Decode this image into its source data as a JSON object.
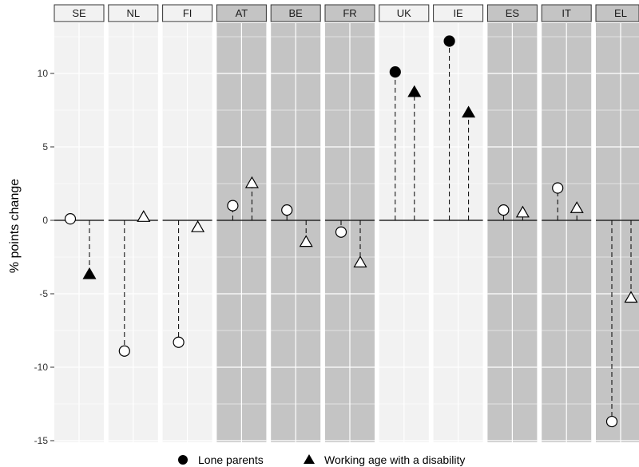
{
  "chart_data": {
    "type": "scatter",
    "ylabel": "% points change",
    "ylim": [
      -15,
      13.5
    ],
    "yticks": [
      -15,
      -10,
      -5,
      0,
      5,
      10
    ],
    "ytick_labels": [
      "-15",
      "-10",
      "-5",
      "0",
      "5",
      "10"
    ],
    "grid": true,
    "legend_position": "bottom",
    "legend": [
      {
        "label": "Lone parents",
        "marker": "circle"
      },
      {
        "label": "Working age with a disability",
        "marker": "triangle"
      }
    ],
    "facets": [
      {
        "label": "SE",
        "shaded": false,
        "lone_parents": {
          "value": 0.1,
          "significant": false
        },
        "disability": {
          "value": -3.7,
          "significant": true
        }
      },
      {
        "label": "NL",
        "shaded": false,
        "lone_parents": {
          "value": -8.9,
          "significant": false
        },
        "disability": {
          "value": 0.2,
          "significant": false
        }
      },
      {
        "label": "FI",
        "shaded": false,
        "lone_parents": {
          "value": -8.3,
          "significant": false
        },
        "disability": {
          "value": -0.5,
          "significant": false
        }
      },
      {
        "label": "AT",
        "shaded": true,
        "lone_parents": {
          "value": 1.0,
          "significant": false
        },
        "disability": {
          "value": 2.5,
          "significant": false
        }
      },
      {
        "label": "BE",
        "shaded": true,
        "lone_parents": {
          "value": 0.7,
          "significant": false
        },
        "disability": {
          "value": -1.5,
          "significant": false
        }
      },
      {
        "label": "FR",
        "shaded": true,
        "lone_parents": {
          "value": -0.8,
          "significant": false
        },
        "disability": {
          "value": -2.9,
          "significant": false
        }
      },
      {
        "label": "UK",
        "shaded": false,
        "lone_parents": {
          "value": 10.1,
          "significant": true
        },
        "disability": {
          "value": 8.7,
          "significant": true
        }
      },
      {
        "label": "IE",
        "shaded": false,
        "lone_parents": {
          "value": 12.2,
          "significant": true
        },
        "disability": {
          "value": 7.3,
          "significant": true
        }
      },
      {
        "label": "ES",
        "shaded": true,
        "lone_parents": {
          "value": 0.7,
          "significant": false
        },
        "disability": {
          "value": 0.5,
          "significant": false
        }
      },
      {
        "label": "IT",
        "shaded": true,
        "lone_parents": {
          "value": 2.2,
          "significant": false
        },
        "disability": {
          "value": 0.8,
          "significant": false
        }
      },
      {
        "label": "EL",
        "shaded": true,
        "lone_parents": {
          "value": -13.7,
          "significant": false
        },
        "disability": {
          "value": -5.3,
          "significant": false
        }
      }
    ],
    "colors": {
      "panel_light": "#f2f2f2",
      "panel_dark": "#c4c4c4",
      "strip_light": "#f2f2f2",
      "strip_dark": "#c4c4c4",
      "marker_filled": "#000000",
      "marker_open": "#ffffff"
    }
  }
}
